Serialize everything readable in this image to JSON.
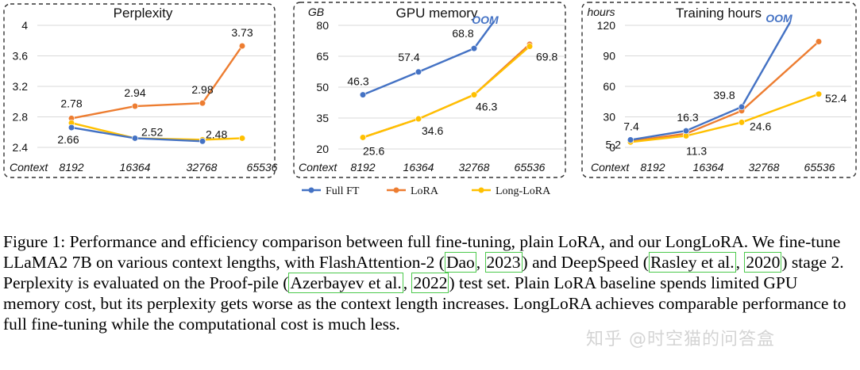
{
  "chart_data": [
    {
      "type": "line",
      "title": "Perplexity",
      "unit": "",
      "xlabel": "Context",
      "categories": [
        "8192",
        "16364",
        "32768",
        "65536"
      ],
      "ylim": [
        2.4,
        4
      ],
      "yticks": [
        "2.4",
        "2.8",
        "3.2",
        "3.6",
        "4"
      ],
      "series": [
        {
          "name": "Full FT",
          "values": [
            2.66,
            2.52,
            2.48,
            null
          ]
        },
        {
          "name": "LoRA",
          "values": [
            2.78,
            2.94,
            2.98,
            3.73
          ]
        },
        {
          "name": "Long-LoRA",
          "values": [
            2.72,
            2.52,
            2.5,
            2.52
          ]
        }
      ],
      "labels": [
        {
          "series": 1,
          "index": 0,
          "text": "2.78"
        },
        {
          "series": 1,
          "index": 1,
          "text": "2.94"
        },
        {
          "series": 1,
          "index": 2,
          "text": "2.98"
        },
        {
          "series": 1,
          "index": 3,
          "text": "3.73"
        },
        {
          "series": 0,
          "index": 0,
          "text": "2.66"
        },
        {
          "series": 0,
          "index": 1,
          "text": "2.52"
        },
        {
          "series": 0,
          "index": 2,
          "text": "2.48"
        }
      ]
    },
    {
      "type": "line",
      "title": "GPU memory",
      "unit": "GB",
      "xlabel": "Context",
      "categories": [
        "8192",
        "16364",
        "32768",
        "65536"
      ],
      "ylim": [
        20,
        80
      ],
      "yticks": [
        "20",
        "35",
        "50",
        "65",
        "80"
      ],
      "oom": "OOM",
      "series": [
        {
          "name": "Full FT",
          "values": [
            46.3,
            57.4,
            68.8,
            null
          ]
        },
        {
          "name": "LoRA",
          "values": [
            25.6,
            34.6,
            46.3,
            70.8
          ]
        },
        {
          "name": "Long-LoRA",
          "values": [
            25.6,
            34.6,
            46.3,
            69.8
          ]
        }
      ],
      "labels": [
        {
          "series": 0,
          "index": 0,
          "text": "46.3"
        },
        {
          "series": 0,
          "index": 1,
          "text": "57.4"
        },
        {
          "series": 0,
          "index": 2,
          "text": "68.8"
        },
        {
          "series": 2,
          "index": 0,
          "text": "25.6"
        },
        {
          "series": 2,
          "index": 1,
          "text": "34.6"
        },
        {
          "series": 2,
          "index": 2,
          "text": "46.3"
        },
        {
          "series": 2,
          "index": 3,
          "text": "69.8"
        }
      ]
    },
    {
      "type": "line",
      "title": "Training hours",
      "unit": "hours",
      "xlabel": "Context",
      "categories": [
        "8192",
        "16364",
        "32768",
        "65536"
      ],
      "ylim": [
        0,
        120
      ],
      "yticks": [
        "0",
        "30",
        "60",
        "90",
        "120"
      ],
      "oom": "OOM",
      "series": [
        {
          "name": "Full FT",
          "values": [
            7.4,
            16.3,
            39.8,
            null
          ]
        },
        {
          "name": "LoRA",
          "values": [
            6.0,
            13.5,
            36.0,
            104.0
          ]
        },
        {
          "name": "Long-LoRA",
          "values": [
            5.2,
            11.3,
            24.6,
            52.4
          ]
        }
      ],
      "labels": [
        {
          "series": 0,
          "index": 0,
          "text": "7.4"
        },
        {
          "series": 0,
          "index": 1,
          "text": "16.3"
        },
        {
          "series": 0,
          "index": 2,
          "text": "39.8"
        },
        {
          "series": 2,
          "index": 0,
          "text": "5.2"
        },
        {
          "series": 2,
          "index": 1,
          "text": "11.3"
        },
        {
          "series": 2,
          "index": 2,
          "text": "24.6"
        },
        {
          "series": 2,
          "index": 3,
          "text": "52.4"
        }
      ]
    }
  ],
  "legend": [
    {
      "name": "Full FT",
      "color": "#4472c4"
    },
    {
      "name": "LoRA",
      "color": "#ed7d31"
    },
    {
      "name": "Long-LoRA",
      "color": "#ffc000"
    }
  ],
  "colors": {
    "full_ft": "#4472c4",
    "lora": "#ed7d31",
    "longlora": "#ffc000",
    "oom": "#4472c4",
    "cite_border": "#4cc94c"
  },
  "caption": {
    "t1": "Figure 1: Performance and efficiency comparison between full fine-tuning, plain LoRA, and our LongLoRA. We fine-tune LLaMA2 7B on various context lengths, with FlashAttention-2 (",
    "c1a": "Dao",
    "t2": ", ",
    "c1b": "2023",
    "t3": ") and DeepSpeed (",
    "c2a": "Rasley et al.",
    "t4": ", ",
    "c2b": "2020",
    "t5": ") stage 2. Perplexity is evaluated on the Proof-pile (",
    "c3a": "Azerbayev et al.",
    "t6": ", ",
    "c3b": "2022",
    "t7": ") test set. Plain LoRA baseline spends limited GPU memory cost, but its perplexity gets worse as the context length increases. LongLoRA achieves comparable performance to full fine-tuning while the computational cost is much less."
  },
  "watermark": "知乎 @时空猫的问答盒"
}
